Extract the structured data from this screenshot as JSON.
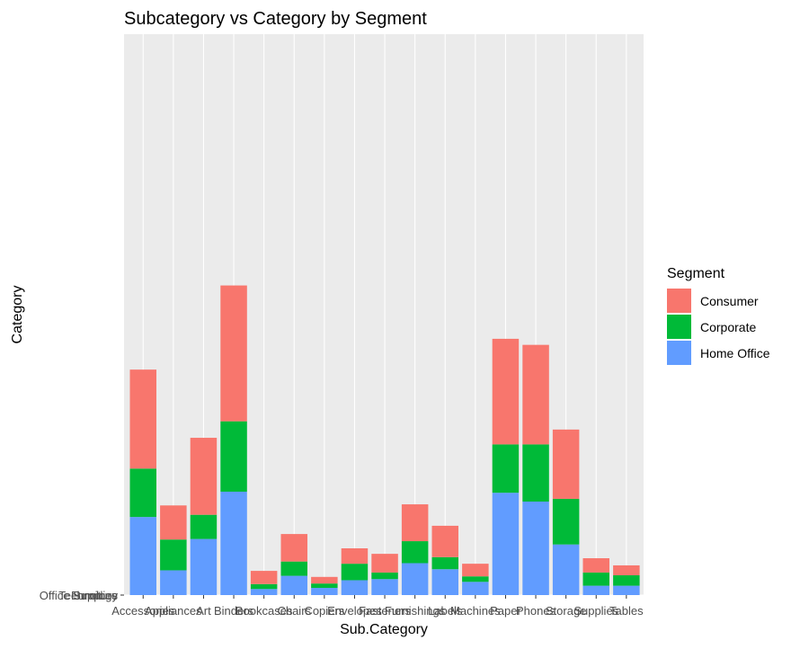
{
  "chart_data": {
    "type": "bar",
    "stacked": true,
    "title": "Subcategory vs Category by Segment",
    "xlabel": "Sub.Category",
    "ylabel": "Category",
    "y_tick_labels": [
      "Office Supplies",
      "Technology",
      "Furniture"
    ],
    "categories": [
      "Accessories",
      "Appliances",
      "Art",
      "Binders",
      "Bookcases",
      "Chairs",
      "Copiers",
      "Envelopes",
      "Fasteners",
      "Furnishings",
      "Labels",
      "Machines",
      "Paper",
      "Phones",
      "Storage",
      "Supplies",
      "Tables"
    ],
    "series": [
      {
        "name": "Home Office",
        "color": "#619CFF",
        "values": [
          142,
          45,
          102,
          188,
          11,
          35,
          13,
          27,
          29,
          58,
          47,
          24,
          186,
          170,
          92,
          17,
          17
        ]
      },
      {
        "name": "Corporate",
        "color": "#00BA38",
        "values": [
          230,
          101,
          146,
          316,
          20,
          61,
          21,
          57,
          41,
          98,
          69,
          34,
          274,
          274,
          175,
          41,
          36
        ]
      },
      {
        "name": "Consumer",
        "color": "#F8766D",
        "values": [
          410,
          163,
          286,
          563,
          44,
          111,
          33,
          85,
          75,
          165,
          126,
          57,
          466,
          455,
          301,
          67,
          54
        ]
      }
    ],
    "ylim": [
      0,
      1020
    ],
    "grid": true,
    "legend": {
      "title": "Segment",
      "position": "right",
      "entries": [
        "Consumer",
        "Corporate",
        "Home Office"
      ]
    }
  }
}
